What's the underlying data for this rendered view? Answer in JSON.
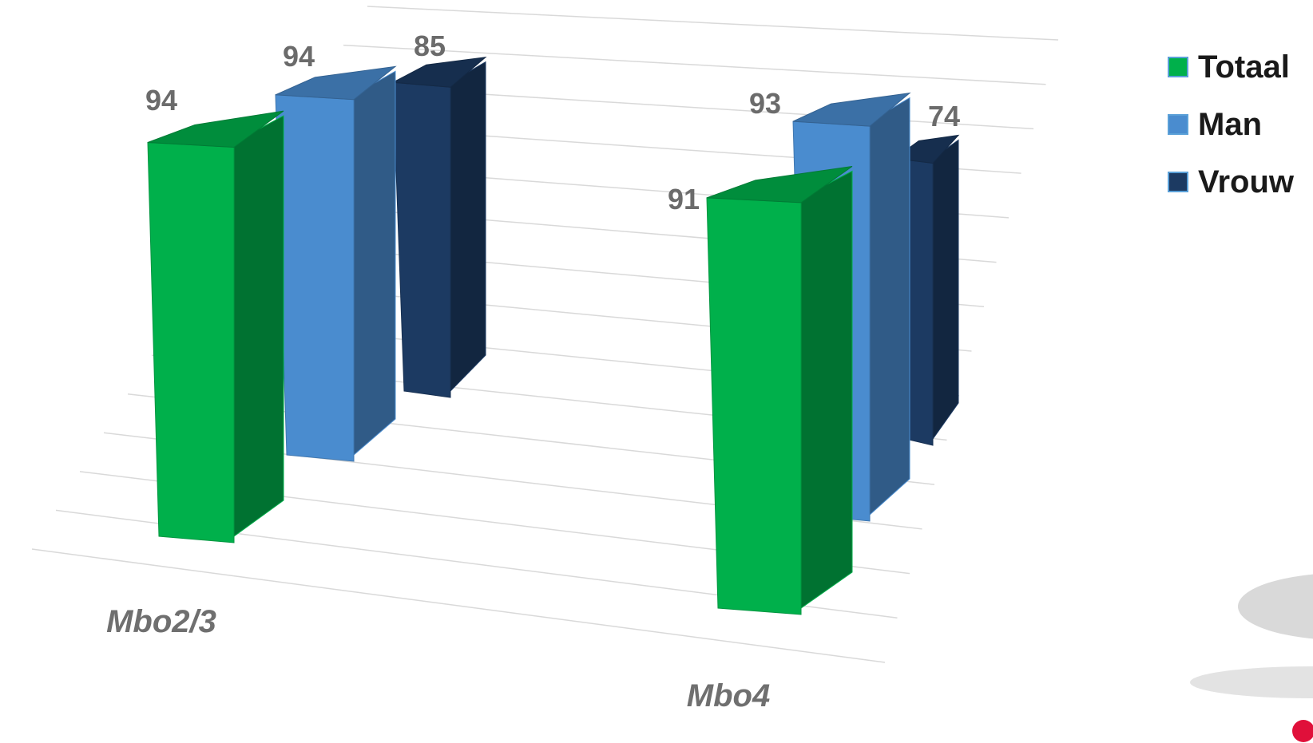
{
  "chart_data": {
    "type": "bar",
    "categories": [
      "Mbo2/3",
      "Mbo4"
    ],
    "series": [
      {
        "name": "Totaal",
        "values": [
          94,
          91
        ],
        "color": "#00b04b"
      },
      {
        "name": "Man",
        "values": [
          94,
          93
        ],
        "color": "#4a8ccf"
      },
      {
        "name": "Vrouw",
        "values": [
          85,
          74
        ],
        "color": "#1c3a62"
      }
    ],
    "data_labels": true,
    "grid": true,
    "legend": "top-right",
    "style": "3d-column"
  }
}
